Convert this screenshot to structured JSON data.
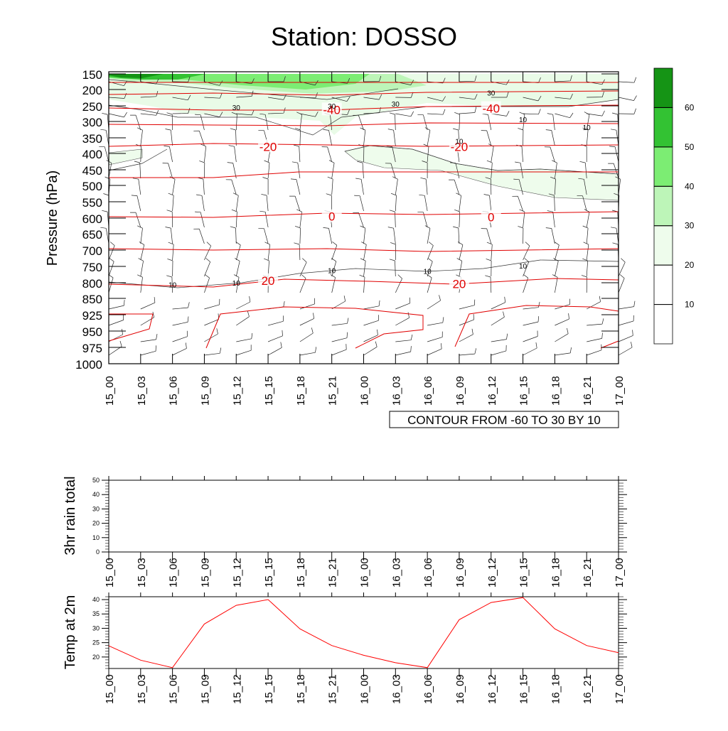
{
  "title": "Station: DOSSO",
  "time_labels": [
    "15_00",
    "15_03",
    "15_06",
    "15_09",
    "15_12",
    "15_15",
    "15_18",
    "15_21",
    "16_00",
    "16_03",
    "16_06",
    "16_09",
    "16_12",
    "16_15",
    "16_18",
    "16_21",
    "17_00"
  ],
  "chart_data": [
    {
      "type": "heatmap",
      "name": "upper-air-cross-section",
      "ylabel": "Pressure (hPa)",
      "y_ticks": [
        150,
        200,
        250,
        300,
        350,
        400,
        450,
        500,
        550,
        600,
        650,
        700,
        750,
        800,
        850,
        925,
        950,
        975,
        1000
      ],
      "y_direction": "reversed",
      "contour_note": "CONTOUR FROM -60 TO 30 BY 10",
      "colorbar": {
        "levels": [
          10,
          20,
          30,
          40,
          50,
          60
        ],
        "colors": [
          "#ffffff",
          "#ffffff",
          "#eefcec",
          "#bdf5b8",
          "#7ced73",
          "#33c233",
          "#159415"
        ]
      },
      "temperature_labels": [
        {
          "value": "-40",
          "time": "15_21",
          "p": 262
        },
        {
          "value": "-40",
          "time": "16_12",
          "p": 258
        },
        {
          "value": "-20",
          "time": "15_15",
          "p": 378
        },
        {
          "value": "-20",
          "time": "16_09",
          "p": 378
        },
        {
          "value": "0",
          "time": "15_21",
          "p": 595
        },
        {
          "value": "0",
          "time": "16_12",
          "p": 597
        },
        {
          "value": "20",
          "time": "15_15",
          "p": 793
        },
        {
          "value": "20",
          "time": "16_09",
          "p": 803
        }
      ],
      "wind_labels": [
        {
          "value": "30",
          "time": "15_12",
          "p": 254
        },
        {
          "value": "30",
          "time": "15_21",
          "p": 250
        },
        {
          "value": "30",
          "time": "16_03",
          "p": 244
        },
        {
          "value": "30",
          "time": "16_12",
          "p": 210
        },
        {
          "value": "10",
          "time": "16_15",
          "p": 293
        },
        {
          "value": "10",
          "time": "16_21",
          "p": 317
        },
        {
          "value": "10",
          "time": "16_09",
          "p": 360
        },
        {
          "value": "10",
          "time": "15_06",
          "p": 806
        },
        {
          "value": "10",
          "time": "15_12",
          "p": 800
        },
        {
          "value": "10",
          "time": "15_21",
          "p": 762
        },
        {
          "value": "10",
          "time": "16_06",
          "p": 764
        },
        {
          "value": "10",
          "time": "16_15",
          "p": 748
        }
      ]
    },
    {
      "type": "line",
      "name": "rain",
      "ylabel": "3hr rain total",
      "ylim": [
        0,
        50
      ],
      "y_ticks": [
        0,
        10,
        20,
        30,
        40,
        50
      ],
      "values": [
        0,
        0,
        0,
        0,
        0,
        0,
        0,
        0,
        0,
        0,
        0,
        0,
        0,
        0,
        0,
        0,
        0
      ]
    },
    {
      "type": "line",
      "name": "temp",
      "ylabel": "Temp at 2m",
      "ylim": [
        16,
        41
      ],
      "y_ticks": [
        20,
        25,
        30,
        35,
        40
      ],
      "color": "#ff0000",
      "values": [
        23.9,
        18.9,
        16.3,
        31.5,
        38.0,
        40.0,
        29.8,
        24.0,
        20.6,
        18.0,
        16.3,
        33.0,
        39.0,
        40.7,
        29.8,
        24.0,
        21.5
      ]
    }
  ]
}
